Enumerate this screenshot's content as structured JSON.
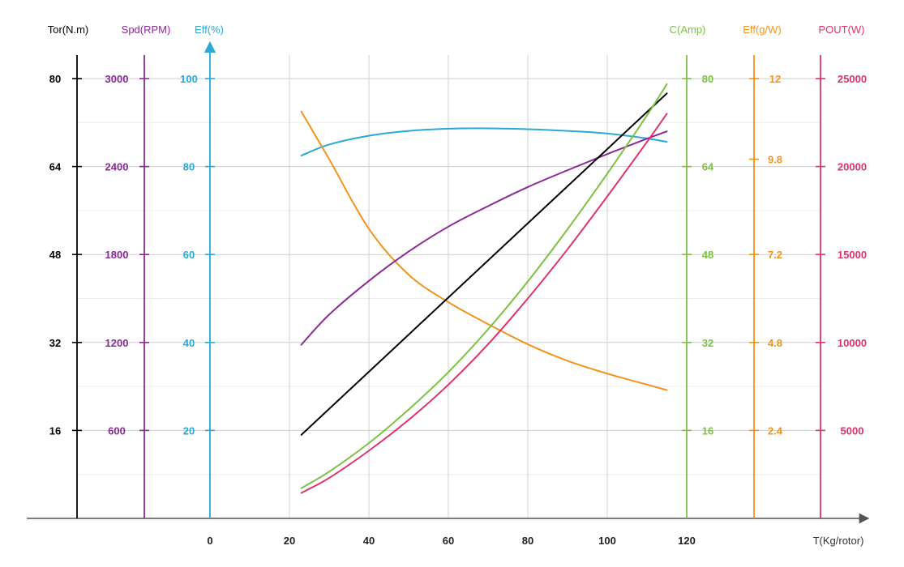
{
  "chart_data": {
    "type": "line",
    "title": "",
    "xlabel": "T(Kg/rotor)",
    "x_ticks": [
      0,
      20,
      40,
      60,
      80,
      100,
      120
    ],
    "grid": true,
    "axes": [
      {
        "id": "tor",
        "label": "Tor(N.m)",
        "color": "#000000",
        "ticks": [
          80,
          64,
          48,
          32,
          16
        ],
        "tick_labels": [
          "80",
          "64",
          "48",
          "32",
          "16"
        ],
        "range": [
          0,
          80
        ]
      },
      {
        "id": "spd",
        "label": "Spd(RPM)",
        "color": "#8B2A96",
        "ticks": [
          3000,
          2400,
          1800,
          1200,
          600
        ],
        "tick_labels": [
          "3000",
          "2400",
          "1800",
          "1200",
          "600"
        ],
        "range": [
          0,
          3000
        ]
      },
      {
        "id": "eff",
        "label": "Eff(%)",
        "color": "#2AA9D6",
        "ticks": [
          100,
          80,
          60,
          40,
          20
        ],
        "tick_labels": [
          "100",
          "80",
          "60",
          "40",
          "20"
        ],
        "range": [
          0,
          100
        ]
      },
      {
        "id": "cur",
        "label": "C(Amp)",
        "color": "#7DC143",
        "ticks": [
          80,
          64,
          48,
          32,
          16
        ],
        "tick_labels": [
          "80",
          "64",
          "48",
          "32",
          "16"
        ],
        "range": [
          0,
          80
        ]
      },
      {
        "id": "effg",
        "label": "Eff(g/W)",
        "color": "#F2931C",
        "ticks": [
          12,
          9.8,
          7.2,
          4.8,
          2.4
        ],
        "tick_labels": [
          "12",
          "9.8",
          "7.2",
          "4.8",
          "2.4"
        ],
        "range": [
          0,
          12
        ]
      },
      {
        "id": "pout",
        "label": "POUT(W)",
        "color": "#E0306F",
        "ticks": [
          25000,
          20000,
          15000,
          10000,
          5000
        ],
        "tick_labels": [
          "25000",
          "20000",
          "15000",
          "10000",
          "5000"
        ],
        "range": [
          0,
          25000
        ]
      }
    ],
    "series": [
      {
        "axis": "eff",
        "color": "#2AA9D6",
        "x": [
          23,
          30,
          40,
          50,
          60,
          68,
          80,
          90,
          100,
          110,
          115
        ],
        "y": [
          82.5,
          85,
          87,
          88.1,
          88.6,
          88.7,
          88.5,
          88.1,
          87.5,
          86.4,
          85.6
        ]
      },
      {
        "axis": "effg",
        "color": "#F2931C",
        "x": [
          23,
          30,
          40,
          50,
          60,
          70,
          80,
          90,
          100,
          110,
          115
        ],
        "y": [
          11.1,
          9.8,
          7.9,
          6.65,
          5.9,
          5.3,
          4.75,
          4.3,
          3.95,
          3.65,
          3.5
        ]
      },
      {
        "axis": "spd",
        "color": "#8B2A96",
        "x": [
          23,
          30,
          40,
          50,
          60,
          70,
          80,
          90,
          100,
          110,
          115
        ],
        "y": [
          1185,
          1390,
          1620,
          1820,
          1990,
          2130,
          2260,
          2375,
          2485,
          2590,
          2640
        ]
      },
      {
        "axis": "tor",
        "color": "#000000",
        "x": [
          23,
          115
        ],
        "y": [
          15.2,
          77.3
        ]
      },
      {
        "axis": "cur",
        "color": "#7DC143",
        "x": [
          23,
          30,
          40,
          50,
          60,
          70,
          80,
          90,
          100,
          110,
          115
        ],
        "y": [
          5.5,
          8.5,
          13.7,
          19.8,
          26.6,
          34.4,
          43.1,
          52.6,
          62.7,
          73.3,
          79
        ]
      },
      {
        "axis": "pout",
        "color": "#E0306F",
        "x": [
          23,
          30,
          40,
          50,
          60,
          70,
          80,
          90,
          100,
          110,
          115
        ],
        "y": [
          1450,
          2300,
          3850,
          5600,
          7600,
          9900,
          12500,
          15300,
          18300,
          21400,
          23000
        ]
      }
    ]
  }
}
